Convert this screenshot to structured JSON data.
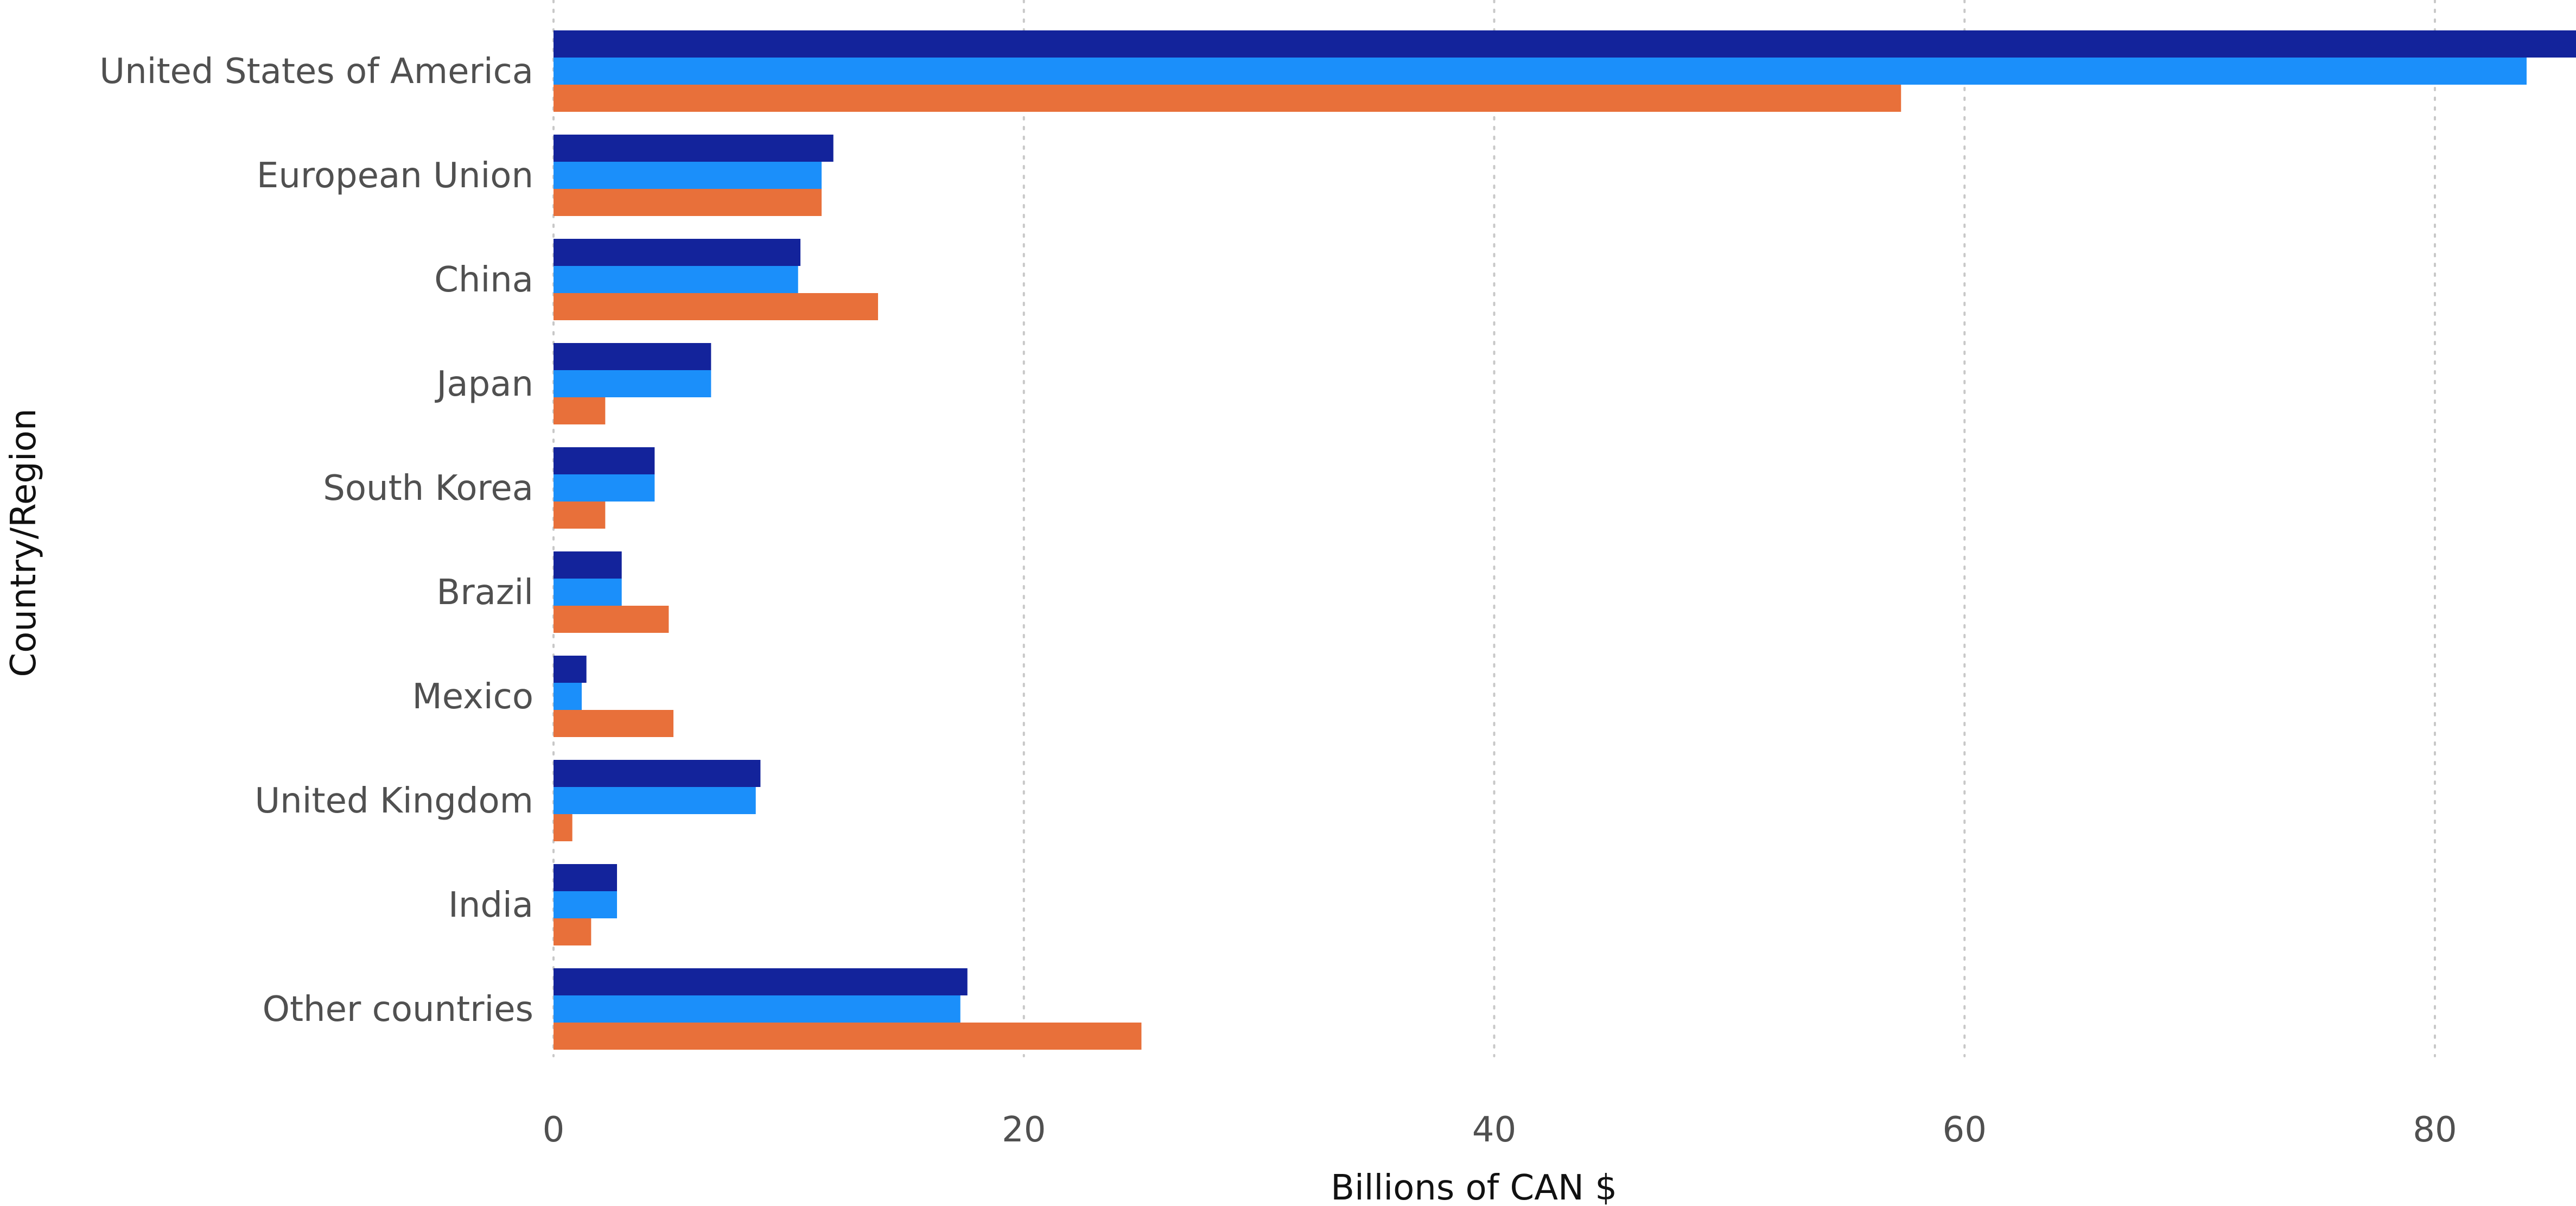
{
  "chart_data": {
    "type": "bar",
    "orientation": "horizontal",
    "categories": [
      "United States of America",
      "European Union",
      "China",
      "Japan",
      "South Korea",
      "Brazil",
      "Mexico",
      "United Kingdom",
      "India",
      "Other countries"
    ],
    "series": [
      {
        "color": "#13239b",
        "values": [
          86.0,
          11.9,
          10.5,
          6.7,
          4.3,
          2.9,
          1.4,
          8.8,
          2.7,
          17.6
        ]
      },
      {
        "color": "#1b8ffa",
        "values": [
          83.9,
          11.4,
          10.4,
          6.7,
          4.3,
          2.9,
          1.2,
          8.6,
          2.7,
          17.3
        ]
      },
      {
        "color": "#e8703a",
        "values": [
          57.3,
          11.4,
          13.8,
          2.2,
          2.2,
          4.9,
          5.1,
          0.8,
          1.6,
          25.0
        ]
      }
    ],
    "xlabel": "Billions of CAN $",
    "ylabel": "Country/Region",
    "xlim": [
      0,
      86
    ],
    "xticks": [
      0,
      20,
      40,
      60,
      80
    ],
    "grid": true,
    "legend": "none"
  }
}
